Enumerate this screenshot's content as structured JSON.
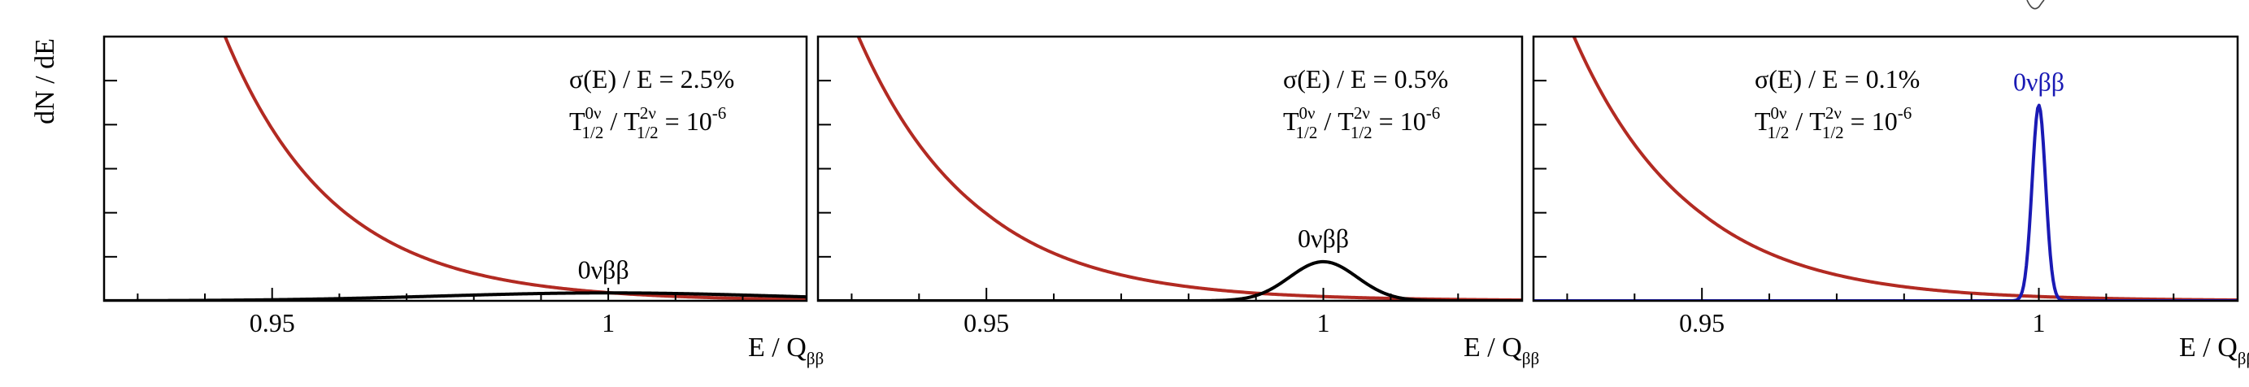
{
  "figure": {
    "ylabel": "dN / dE",
    "xlabel_main": "E / Q",
    "xlabel_sub": "ββ"
  },
  "colors": {
    "background": "#b22a22",
    "peak_black": "#000000",
    "peak_blue": "#1a1ab4"
  },
  "chart_data": [
    {
      "type": "line",
      "xlim": [
        0.925,
        1.0295
      ],
      "ylim": [
        0,
        1.0
      ],
      "x_ticks": [
        "0.95",
        "1"
      ],
      "grid": false,
      "resolution_label": "σ(E) / E = 2.5%",
      "half_life_label": {
        "main1": "T",
        "sup1": "0ν",
        "sub1": "1/2",
        "mid": " / T",
        "sup2": "2ν",
        "sub2": "1/2",
        "eq": " = 10",
        "exp": "-6"
      },
      "peak_label": "0νββ",
      "peak_label_color": "#000000",
      "series": [
        {
          "role": "background",
          "color": "#b22a22",
          "curve": "exponential",
          "x_range": [
            0.925,
            1.0295
          ],
          "points": [
            [
              0.943,
              1.0
            ],
            [
              0.96,
              0.352
            ],
            [
              0.98,
              0.104
            ],
            [
              1.0,
              0.031
            ],
            [
              1.0295,
              0.005
            ]
          ]
        },
        {
          "role": "signal",
          "color": "#000000",
          "curve": "gaussian",
          "center": 1.0,
          "sigma": 0.025,
          "amplitude": 0.03
        }
      ]
    },
    {
      "type": "line",
      "xlim": [
        0.925,
        1.0295
      ],
      "ylim": [
        0,
        1.0
      ],
      "x_ticks": [
        "0.95",
        "1"
      ],
      "grid": false,
      "resolution_label": "σ(E) / E = 0.5%",
      "half_life_label": {
        "main1": "T",
        "sup1": "0ν",
        "sub1": "1/2",
        "mid": " / T",
        "sup2": "2ν",
        "sub2": "1/2",
        "eq": " = 10",
        "exp": "-6"
      },
      "peak_label": "0νββ",
      "peak_label_color": "#000000",
      "series": [
        {
          "role": "background",
          "color": "#b22a22",
          "curve": "exponential",
          "x_range": [
            0.925,
            1.0295
          ],
          "points": [
            [
              0.931,
              1.0
            ],
            [
              0.95,
              0.33
            ],
            [
              0.97,
              0.098
            ],
            [
              0.99,
              0.029
            ],
            [
              1.0295,
              0.003
            ]
          ]
        },
        {
          "role": "signal",
          "color": "#000000",
          "curve": "gaussian",
          "center": 1.0,
          "sigma": 0.005,
          "amplitude": 0.148
        }
      ]
    },
    {
      "type": "line",
      "xlim": [
        0.925,
        1.0295
      ],
      "ylim": [
        0,
        1.0
      ],
      "x_ticks": [
        "0.95",
        "1"
      ],
      "grid": false,
      "resolution_label": "σ(E) / E = 0.1%",
      "half_life_label": {
        "main1": "T",
        "sup1": "0ν",
        "sub1": "1/2",
        "mid": " / T",
        "sup2": "2ν",
        "sub2": "1/2",
        "eq": " = 10",
        "exp": "-6"
      },
      "peak_label": "0νββ",
      "peak_label_color": "#1a1ab4",
      "series": [
        {
          "role": "background",
          "color": "#b22a22",
          "curve": "exponential",
          "x_range": [
            0.925,
            1.0295
          ],
          "points": [
            [
              0.931,
              1.0
            ],
            [
              0.95,
              0.33
            ],
            [
              0.97,
              0.098
            ],
            [
              0.99,
              0.029
            ],
            [
              1.0295,
              0.003
            ]
          ]
        },
        {
          "role": "signal",
          "color": "#1a1ab4",
          "curve": "gaussian",
          "center": 1.0,
          "sigma": 0.001,
          "amplitude": 0.74
        }
      ]
    }
  ]
}
